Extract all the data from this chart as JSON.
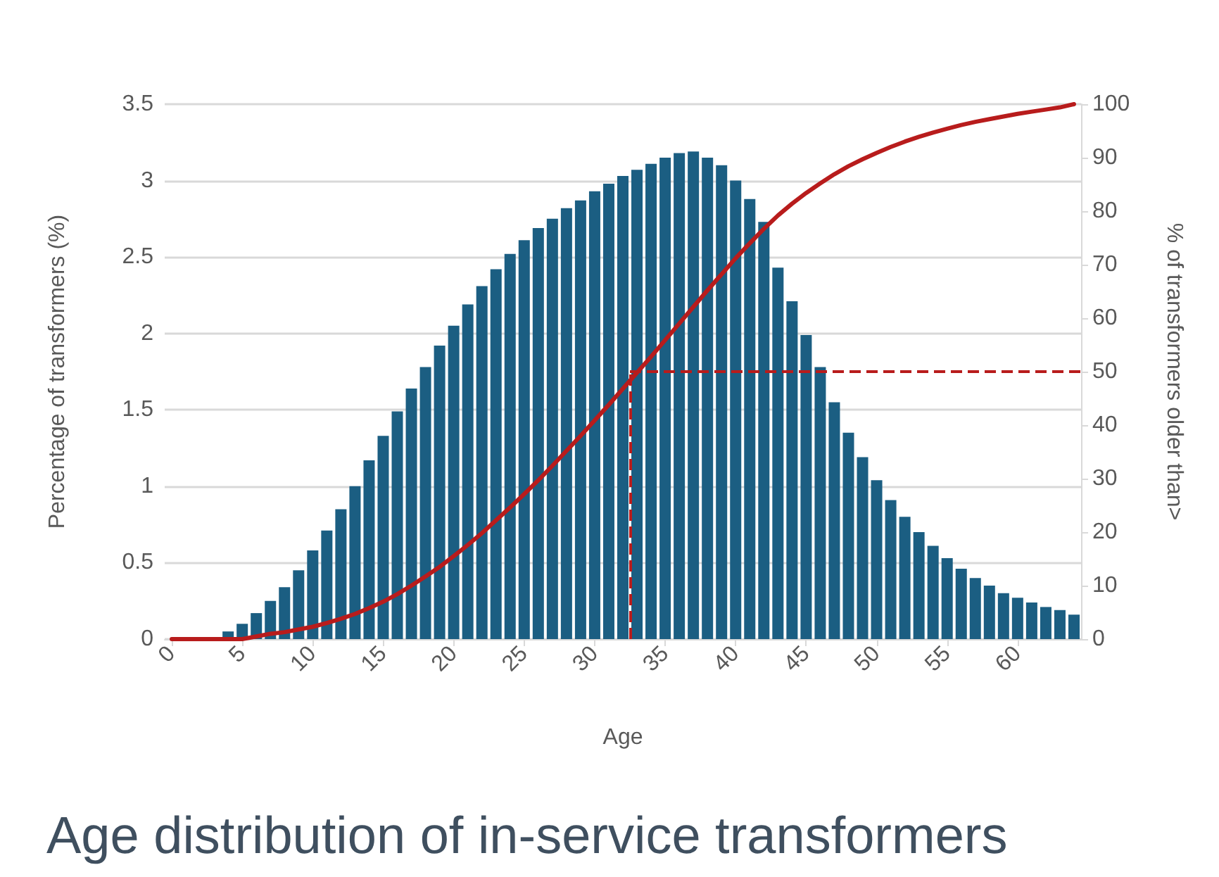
{
  "chart_data": {
    "type": "bar",
    "title": "Age distribution of in-service transformers",
    "xlabel": "Age",
    "ylabel": "Percentage of transformers (%)",
    "y2label": "% of transformers older than>",
    "x": [
      0,
      1,
      2,
      3,
      4,
      5,
      6,
      7,
      8,
      9,
      10,
      11,
      12,
      13,
      14,
      15,
      16,
      17,
      18,
      19,
      20,
      21,
      22,
      23,
      24,
      25,
      26,
      27,
      28,
      29,
      30,
      31,
      32,
      33,
      34,
      35,
      36,
      37,
      38,
      39,
      40,
      41,
      42,
      43,
      44,
      45,
      46,
      47,
      48,
      49,
      50,
      51,
      52,
      53,
      54,
      55,
      56,
      57,
      58,
      59,
      60,
      61,
      62,
      63,
      64
    ],
    "series": [
      {
        "color": "#1b5e82",
        "values": [
          0,
          0,
          0,
          0,
          0.05,
          0.1,
          0.17,
          0.25,
          0.34,
          0.45,
          0.58,
          0.71,
          0.85,
          1.0,
          1.17,
          1.33,
          1.49,
          1.64,
          1.78,
          1.92,
          2.05,
          2.19,
          2.31,
          2.42,
          2.52,
          2.61,
          2.69,
          2.75,
          2.82,
          2.87,
          2.93,
          2.98,
          3.03,
          3.07,
          3.11,
          3.15,
          3.18,
          3.19,
          3.15,
          3.1,
          3.0,
          2.88,
          2.73,
          2.43,
          2.21,
          1.99,
          1.78,
          1.55,
          1.35,
          1.19,
          1.04,
          0.91,
          0.8,
          0.7,
          0.61,
          0.53,
          0.46,
          0.4,
          0.35,
          0.3,
          0.27,
          0.24,
          0.21,
          0.19,
          0.16
        ]
      },
      {
        "type": "line",
        "axis": "y2",
        "color": "#b81c1c",
        "marker": "none",
        "line_style": "solid",
        "values": [
          0,
          0,
          0,
          0,
          0,
          0,
          0.5,
          1,
          1.3,
          1.8,
          2.3,
          3,
          3.8,
          4.7,
          5.8,
          7,
          8.4,
          10,
          11.7,
          13.5,
          15.5,
          17.6,
          19.8,
          22.2,
          24.6,
          27.1,
          29.7,
          32.4,
          35.2,
          38,
          40.9,
          43.8,
          46.8,
          49.8,
          52.8,
          55.9,
          59,
          62.1,
          65.2,
          68.2,
          71.2,
          74,
          76.7,
          79.2,
          81.4,
          83.4,
          85.2,
          86.9,
          88.4,
          89.7,
          90.9,
          92,
          93,
          93.9,
          94.7,
          95.4,
          96.1,
          96.7,
          97.2,
          97.7,
          98.2,
          98.6,
          99,
          99.4,
          100
        ]
      }
    ],
    "xlim": [
      -0.5,
      64.5
    ],
    "xticks": [
      0,
      5,
      10,
      15,
      20,
      25,
      30,
      35,
      40,
      45,
      50,
      55,
      60
    ],
    "ylim": [
      0,
      3.5
    ],
    "yticks": [
      0,
      0.5,
      1,
      1.5,
      2,
      2.5,
      3,
      3.5
    ],
    "y2lim": [
      0,
      100
    ],
    "y2ticks": [
      0,
      10,
      20,
      30,
      40,
      50,
      60,
      70,
      80,
      90,
      100
    ],
    "ref_lines": [
      {
        "axis": "x",
        "value": 32.5,
        "color": "#b81c1c",
        "line_style": "dashed"
      },
      {
        "axis": "y2",
        "value": 50,
        "color": "#b81c1c",
        "line_style": "dashed"
      }
    ],
    "grid": "y"
  }
}
